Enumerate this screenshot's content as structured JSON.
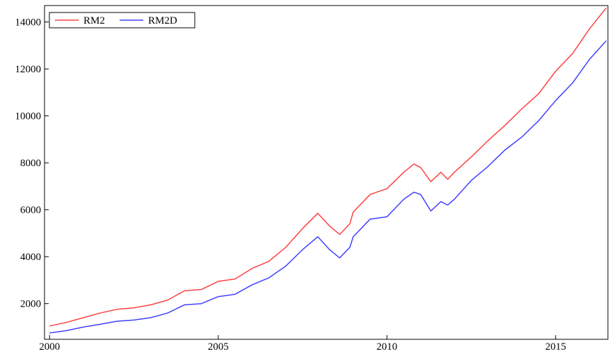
{
  "chart_data": {
    "type": "line",
    "title": "",
    "xlabel": "",
    "ylabel": "",
    "xlim": [
      1999.85,
      2016.55
    ],
    "ylim": [
      480,
      14700
    ],
    "x_ticks": [
      2000,
      2005,
      2010,
      2015
    ],
    "x_tick_labels": [
      "2000",
      "2005",
      "2010",
      "2015"
    ],
    "y_ticks": [
      2000,
      4000,
      6000,
      8000,
      10000,
      12000,
      14000
    ],
    "y_tick_labels": [
      "2000",
      "4000",
      "6000",
      "8000",
      "10000",
      "12000",
      "14000"
    ],
    "grid": false,
    "legend_position": "top-left",
    "series": [
      {
        "name": "RM2",
        "color": "#ff4040",
        "points": [
          [
            2000.0,
            1050
          ],
          [
            2000.5,
            1200
          ],
          [
            2001.0,
            1400
          ],
          [
            2001.5,
            1600
          ],
          [
            2002.0,
            1760
          ],
          [
            2002.5,
            1820
          ],
          [
            2003.0,
            1950
          ],
          [
            2003.5,
            2150
          ],
          [
            2004.0,
            2550
          ],
          [
            2004.5,
            2600
          ],
          [
            2005.0,
            2950
          ],
          [
            2005.5,
            3050
          ],
          [
            2006.0,
            3500
          ],
          [
            2006.5,
            3800
          ],
          [
            2007.0,
            4400
          ],
          [
            2007.5,
            5200
          ],
          [
            2007.95,
            5850
          ],
          [
            2008.3,
            5300
          ],
          [
            2008.6,
            4950
          ],
          [
            2008.9,
            5400
          ],
          [
            2009.0,
            5900
          ],
          [
            2009.5,
            6650
          ],
          [
            2010.0,
            6900
          ],
          [
            2010.5,
            7600
          ],
          [
            2010.8,
            7950
          ],
          [
            2011.0,
            7800
          ],
          [
            2011.3,
            7200
          ],
          [
            2011.6,
            7600
          ],
          [
            2011.8,
            7300
          ],
          [
            2012.0,
            7600
          ],
          [
            2012.5,
            8250
          ],
          [
            2013.0,
            8950
          ],
          [
            2013.5,
            9600
          ],
          [
            2014.0,
            10300
          ],
          [
            2014.5,
            10950
          ],
          [
            2015.0,
            11900
          ],
          [
            2015.5,
            12650
          ],
          [
            2016.0,
            13700
          ],
          [
            2016.5,
            14600
          ]
        ]
      },
      {
        "name": "RM2D",
        "color": "#4040ff",
        "points": [
          [
            2000.0,
            750
          ],
          [
            2000.5,
            850
          ],
          [
            2001.0,
            1000
          ],
          [
            2001.5,
            1120
          ],
          [
            2002.0,
            1250
          ],
          [
            2002.5,
            1300
          ],
          [
            2003.0,
            1400
          ],
          [
            2003.5,
            1600
          ],
          [
            2004.0,
            1950
          ],
          [
            2004.5,
            2000
          ],
          [
            2005.0,
            2300
          ],
          [
            2005.5,
            2400
          ],
          [
            2006.0,
            2800
          ],
          [
            2006.5,
            3100
          ],
          [
            2007.0,
            3600
          ],
          [
            2007.5,
            4300
          ],
          [
            2007.95,
            4850
          ],
          [
            2008.3,
            4300
          ],
          [
            2008.6,
            3950
          ],
          [
            2008.9,
            4400
          ],
          [
            2009.0,
            4850
          ],
          [
            2009.5,
            5600
          ],
          [
            2010.0,
            5700
          ],
          [
            2010.5,
            6450
          ],
          [
            2010.8,
            6750
          ],
          [
            2011.0,
            6650
          ],
          [
            2011.3,
            5950
          ],
          [
            2011.6,
            6350
          ],
          [
            2011.8,
            6200
          ],
          [
            2012.0,
            6450
          ],
          [
            2012.5,
            7250
          ],
          [
            2013.0,
            7850
          ],
          [
            2013.5,
            8550
          ],
          [
            2014.0,
            9100
          ],
          [
            2014.5,
            9800
          ],
          [
            2015.0,
            10650
          ],
          [
            2015.5,
            11400
          ],
          [
            2016.0,
            12400
          ],
          [
            2016.5,
            13200
          ]
        ]
      }
    ]
  }
}
